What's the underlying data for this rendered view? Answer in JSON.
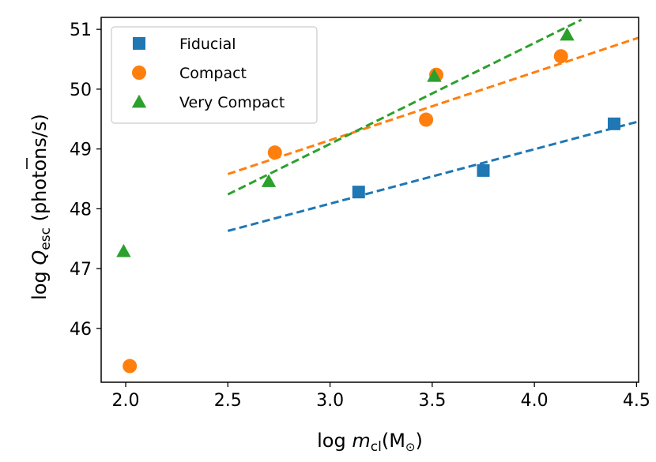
{
  "chart_data": {
    "type": "scatter",
    "title": "",
    "xlabel": "log m_cl(M_⊙)",
    "ylabel": "log Q̄_esc (photons/s)",
    "xlim": [
      1.88,
      4.51
    ],
    "ylim": [
      45.1,
      51.2
    ],
    "xticks": [
      "2.0",
      "2.5",
      "3.0",
      "3.5",
      "4.0",
      "4.5"
    ],
    "yticks": [
      "46",
      "47",
      "48",
      "49",
      "50",
      "51"
    ],
    "legend_position": "top-left",
    "series": [
      {
        "name": "Fiducial",
        "color": "#1f77b4",
        "marker": "square",
        "x": [
          3.14,
          3.75,
          4.39
        ],
        "y": [
          48.28,
          48.64,
          49.42
        ],
        "fit": {
          "x": [
            2.5,
            4.51
          ],
          "y": [
            47.63,
            49.46
          ]
        }
      },
      {
        "name": "Compact",
        "color": "#ff7f0e",
        "marker": "circle",
        "x": [
          2.02,
          2.73,
          3.47,
          3.52,
          4.13
        ],
        "y": [
          45.37,
          48.94,
          49.49,
          50.24,
          50.55
        ],
        "fit": {
          "x": [
            2.5,
            4.51
          ],
          "y": [
            48.58,
            50.86
          ]
        }
      },
      {
        "name": "Very Compact",
        "color": "#2ca02c",
        "marker": "triangle",
        "x": [
          1.99,
          2.7,
          3.51,
          4.16
        ],
        "y": [
          47.29,
          48.46,
          50.22,
          50.91
        ],
        "fit": {
          "x": [
            2.5,
            4.23
          ],
          "y": [
            48.24,
            51.16
          ]
        }
      }
    ]
  },
  "labels": {
    "xlabel_prefix": "log ",
    "xlabel_var": "m",
    "xlabel_sub": "cl",
    "xlabel_unit_open": "(M",
    "xlabel_sun": "⊙",
    "xlabel_unit_close": ")",
    "ylabel_prefix": "log ",
    "ylabel_var": "Q",
    "ylabel_sub": "esc",
    "ylabel_suffix": " (photons/s)"
  }
}
